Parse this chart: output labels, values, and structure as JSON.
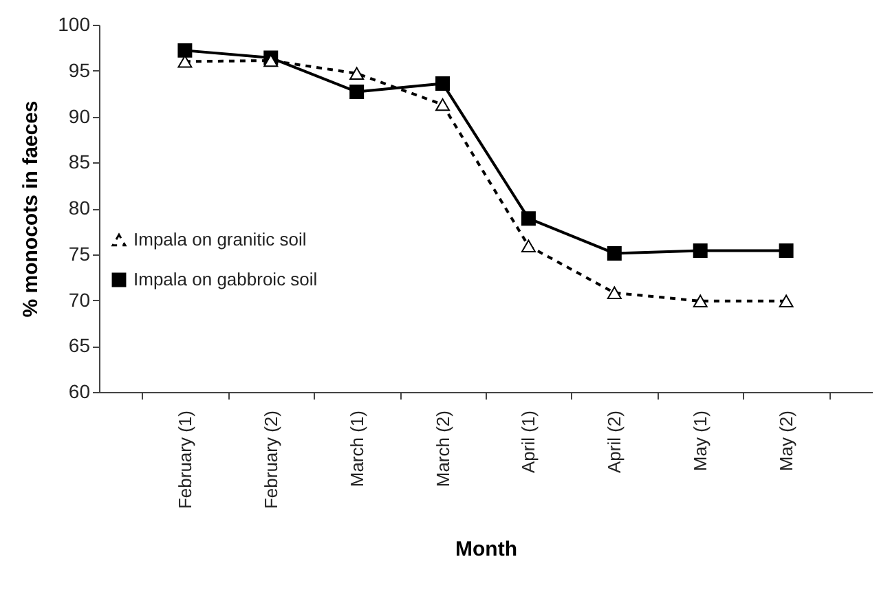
{
  "chart_data": {
    "type": "line",
    "xlabel": "Month",
    "ylabel": "% monocots in faeces",
    "categories": [
      "February (1)",
      "February (2)",
      "March (1)",
      "March (2)",
      "April (1)",
      "April (2)",
      "May (1)",
      "May (2)"
    ],
    "series": [
      {
        "name": "Impala on granitic soil",
        "color": "#000000",
        "marker": "triangle",
        "line_style": "dashed",
        "values": [
          96.0,
          96.1,
          94.7,
          91.3,
          75.9,
          70.8,
          69.9,
          69.9
        ]
      },
      {
        "name": "Impala on gabbroic soil",
        "color": "#000000",
        "marker": "square",
        "line_style": "solid",
        "values": [
          97.2,
          96.4,
          92.7,
          93.6,
          78.9,
          75.1,
          75.4,
          75.4
        ]
      }
    ],
    "ylim": [
      60,
      100
    ],
    "yticks": [
      60,
      65,
      70,
      75,
      80,
      85,
      90,
      95,
      100
    ],
    "grid": false,
    "legend": "left"
  }
}
